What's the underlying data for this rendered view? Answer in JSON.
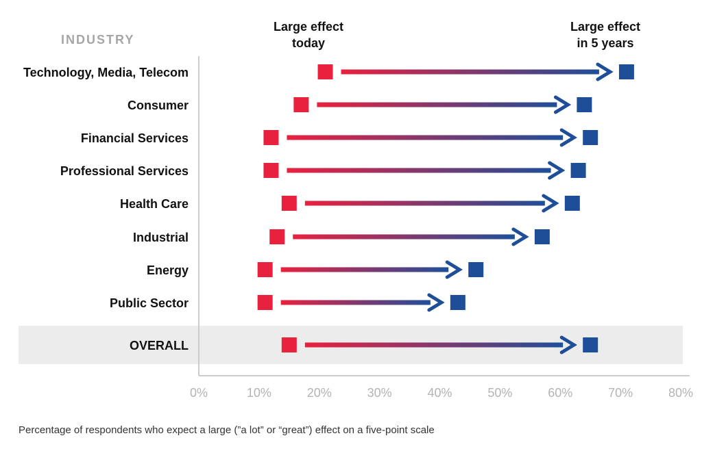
{
  "chart_data": {
    "type": "dumbbell-arrow",
    "row_header": "INDUSTRY",
    "series": [
      {
        "name": "Large effect today",
        "label_lines": [
          "Large effect",
          "today"
        ],
        "color": "#e8213f"
      },
      {
        "name": "Large effect in 5 years",
        "label_lines": [
          "Large effect",
          "in 5 years"
        ],
        "color": "#1f4e99"
      }
    ],
    "categories": [
      "Technology, Media, Telecom",
      "Consumer",
      "Financial Services",
      "Professional Services",
      "Health Care",
      "Industrial",
      "Energy",
      "Public Sector",
      "OVERALL"
    ],
    "today": [
      21,
      17,
      12,
      12,
      15,
      13,
      11,
      11,
      15
    ],
    "in_5_years": [
      71,
      64,
      65,
      63,
      62,
      57,
      46,
      43,
      65
    ],
    "highlight_category": "OVERALL",
    "xlim": [
      0,
      80
    ],
    "xticks": [
      0,
      10,
      20,
      30,
      40,
      50,
      60,
      70,
      80
    ],
    "tick_labels": [
      "0%",
      "10%",
      "20%",
      "30%",
      "40%",
      "50%",
      "60%",
      "70%",
      "80%"
    ],
    "grid": false,
    "colors": {
      "today": "#e8213f",
      "future": "#1f4e99",
      "highlight_band": "#ececec",
      "axis": "#cccccc"
    }
  },
  "footnote": "Percentage of respondents who expect a large (”a lot” or “great”) effect on a five-point scale"
}
